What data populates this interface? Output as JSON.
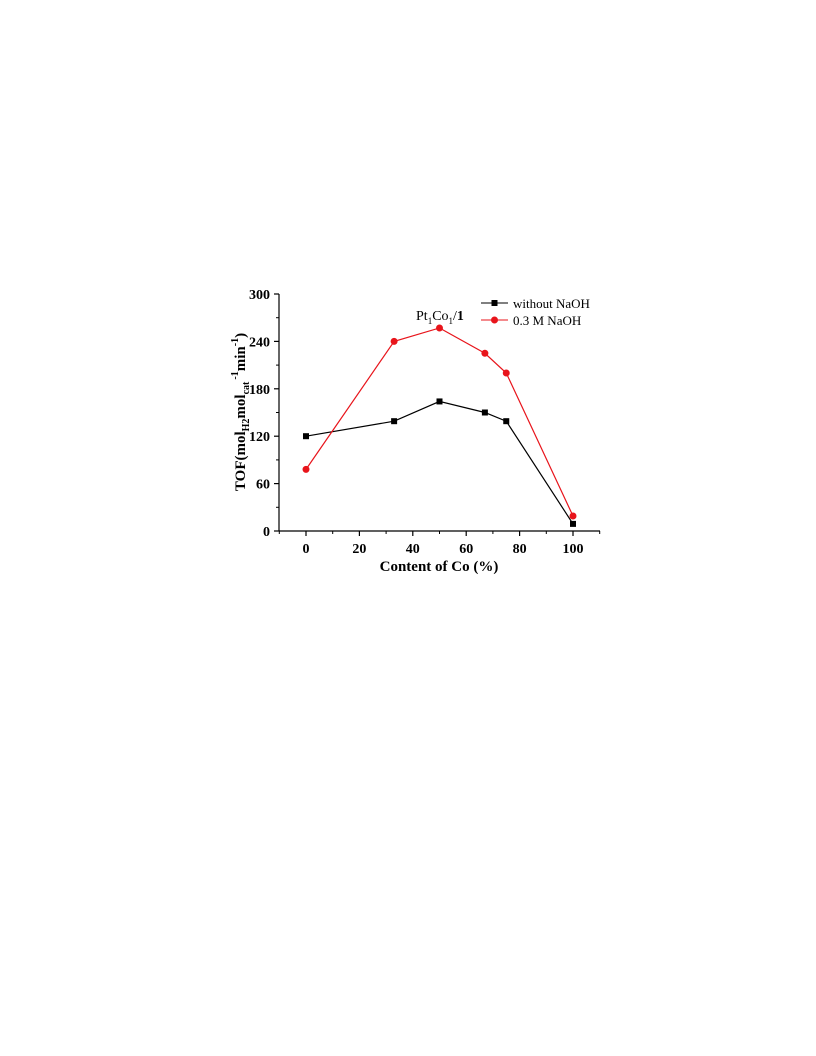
{
  "chart_data": {
    "type": "line",
    "xlabel": "Content of Co (%)",
    "ylabel_parts": {
      "main": "TOF(mol",
      "sub1": "H2",
      "mid1": "mol",
      "sub2": "cat",
      "sup1": "-1",
      "mid2": "min",
      "sup2": "-1",
      "end": ")"
    },
    "xlim": [
      -10,
      110
    ],
    "ylim": [
      0,
      300
    ],
    "xticks": [
      0,
      20,
      40,
      60,
      80,
      100
    ],
    "yticks": [
      0,
      60,
      120,
      180,
      240,
      300
    ],
    "annotation": {
      "parts": {
        "a": "Pt",
        "s1": "1",
        "b": "Co",
        "s2": "1",
        "c": "/",
        "d": "1"
      },
      "x": 50,
      "y": 256
    },
    "series": [
      {
        "name": "without NaOH",
        "color": "#000000",
        "marker": "square",
        "x": [
          0,
          33,
          50,
          67,
          75,
          100
        ],
        "y": [
          120,
          139,
          164,
          150,
          139,
          9
        ]
      },
      {
        "name": "0.3 M NaOH",
        "color": "#e8141b",
        "marker": "circle",
        "x": [
          0,
          33,
          50,
          67,
          75,
          100
        ],
        "y": [
          78,
          240,
          257,
          225,
          200,
          19
        ]
      }
    ],
    "legend_position": "top-right"
  }
}
